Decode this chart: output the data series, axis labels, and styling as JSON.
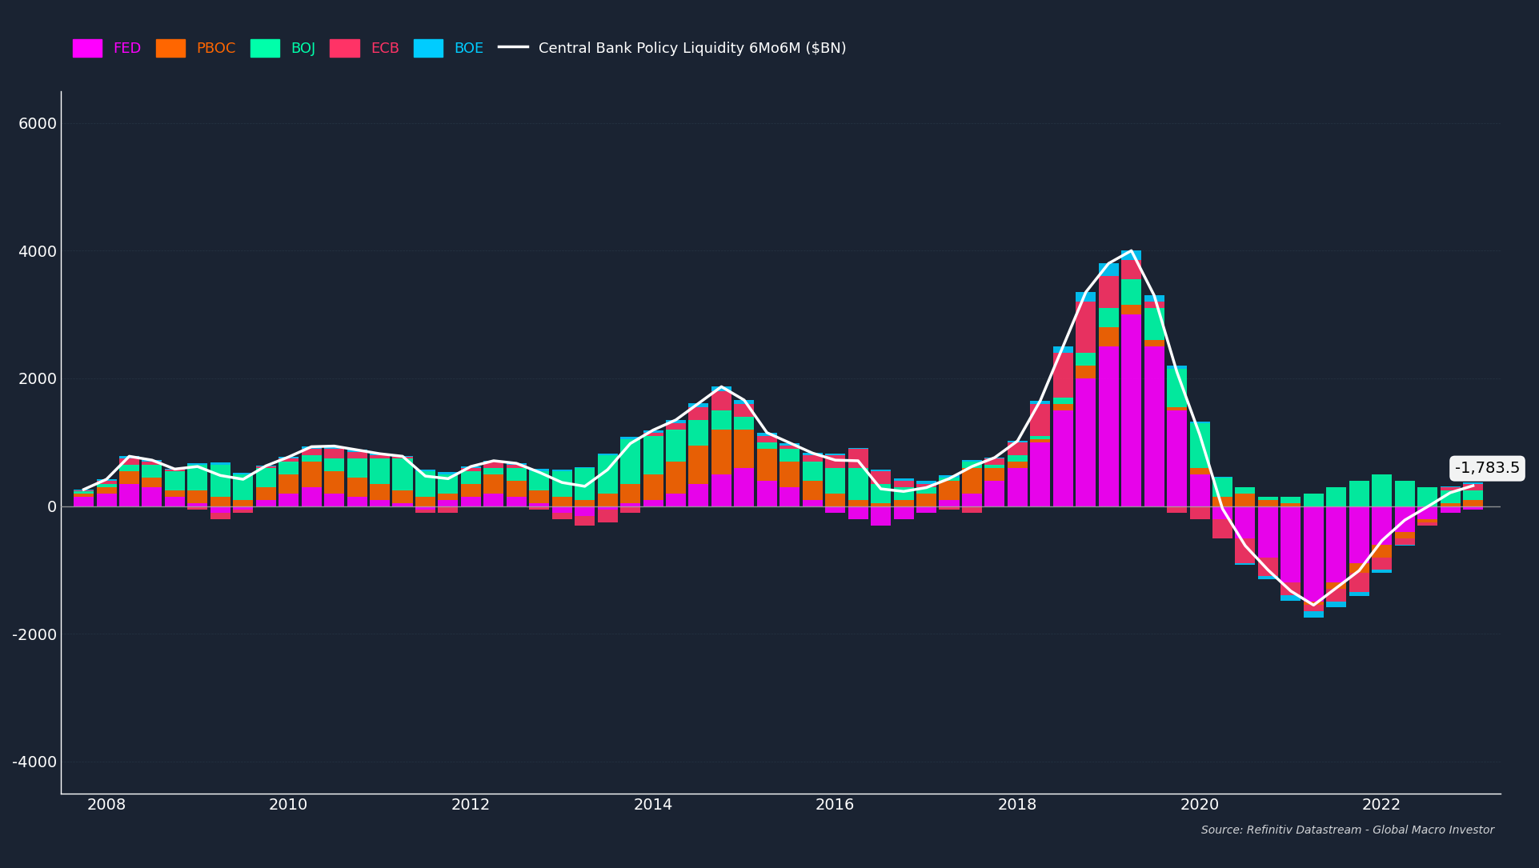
{
  "background_color": "#1a2332",
  "plot_bg_color": "#1a2332",
  "title": "Central Bank Policy Liquidity 6Mo6M ($BN)",
  "ylabel_ticks": [
    "-4000",
    "-2000",
    "0",
    "2000",
    "4000",
    "6000"
  ],
  "ylim": [
    -4500,
    6500
  ],
  "xlim_start": 2007.5,
  "xlim_end": 2023.3,
  "annotation_value": "-1,783.5",
  "source_text": "Source: Refinitiv Datastream - Global Macro Investor",
  "colors": {
    "FED": "#ff00ff",
    "PBOC": "#ff6600",
    "BOJ": "#00ffaa",
    "ECB": "#ff3366",
    "BOE": "#00ccff",
    "line": "#ffffff"
  },
  "legend_labels": [
    "FED",
    "PBOC",
    "BOJ",
    "ECB",
    "BOE"
  ],
  "grid_color": "#2a3a4a",
  "zero_line_color": "#aaaaaa"
}
